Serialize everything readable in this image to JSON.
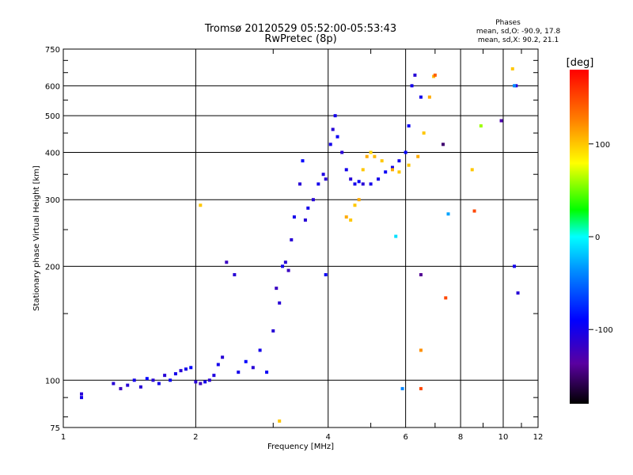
{
  "chart_data": {
    "type": "scatter",
    "title": "Tromsø 20120529 05:52:00-05:53:43",
    "subtitle": "RwPretec (8p)",
    "xlabel": "Frequency [MHz]",
    "ylabel": "Stationary phase Virtual Height [km]",
    "x_scale": "log",
    "y_scale": "log",
    "xlim": [
      1,
      12
    ],
    "ylim": [
      75,
      750
    ],
    "x_ticks": [
      1,
      2,
      4,
      6,
      8,
      10,
      12
    ],
    "x_tick_labels": [
      "1",
      "2",
      "4",
      "6",
      "8",
      "10",
      "12"
    ],
    "y_ticks": [
      75,
      100,
      200,
      300,
      400,
      500,
      600,
      750
    ],
    "y_tick_labels": [
      "75",
      "100",
      "200",
      "300",
      "400",
      "500",
      "600",
      "750"
    ],
    "grid": true,
    "info": {
      "heading": "Phases",
      "line0": "mean, sd,O: -90.9, 17.8",
      "line1": "mean, sd,X:  90.2, 21.1"
    },
    "colorbar": {
      "label": "[deg]",
      "range": [
        -180,
        180
      ],
      "ticks": [
        100,
        0,
        -100
      ],
      "tick_labels": [
        "100",
        "0",
        "-100"
      ]
    },
    "series": [
      {
        "values": [
          [
            1.1,
            92,
            -110
          ],
          [
            1.1,
            90,
            -100
          ],
          [
            1.3,
            98,
            -110
          ],
          [
            1.35,
            95,
            -120
          ],
          [
            1.4,
            97,
            -110
          ],
          [
            1.45,
            100,
            -100
          ],
          [
            1.5,
            96,
            -110
          ],
          [
            1.55,
            101,
            -90
          ],
          [
            1.6,
            100,
            -110
          ],
          [
            1.65,
            98,
            -100
          ],
          [
            1.7,
            103,
            -110
          ],
          [
            1.75,
            100,
            -95
          ],
          [
            1.8,
            104,
            -100
          ],
          [
            1.85,
            106,
            -110
          ],
          [
            1.9,
            107,
            -100
          ],
          [
            1.95,
            108,
            -90
          ],
          [
            2.0,
            99,
            -110
          ],
          [
            2.05,
            98,
            -120
          ],
          [
            2.1,
            99,
            -100
          ],
          [
            2.15,
            100,
            -110
          ],
          [
            2.2,
            103,
            -105
          ],
          [
            2.25,
            110,
            -100
          ],
          [
            2.3,
            115,
            -110
          ],
          [
            2.35,
            205,
            -120
          ],
          [
            2.45,
            190,
            -110
          ],
          [
            2.5,
            105,
            -100
          ],
          [
            2.6,
            112,
            -90
          ],
          [
            2.7,
            108,
            -110
          ],
          [
            2.8,
            120,
            -100
          ],
          [
            2.9,
            105,
            -95
          ],
          [
            3.0,
            135,
            -110
          ],
          [
            3.05,
            175,
            -120
          ],
          [
            3.1,
            160,
            -110
          ],
          [
            3.15,
            200,
            -100
          ],
          [
            3.2,
            205,
            -110
          ],
          [
            3.25,
            195,
            -120
          ],
          [
            3.3,
            235,
            -110
          ],
          [
            3.35,
            270,
            -100
          ],
          [
            3.45,
            330,
            -110
          ],
          [
            3.5,
            380,
            -90
          ],
          [
            3.55,
            265,
            -110
          ],
          [
            3.6,
            285,
            -100
          ],
          [
            3.7,
            300,
            -110
          ],
          [
            3.8,
            330,
            -100
          ],
          [
            3.9,
            350,
            -105
          ],
          [
            3.95,
            340,
            -110
          ],
          [
            3.95,
            190,
            -95
          ],
          [
            4.05,
            420,
            -100
          ],
          [
            4.1,
            460,
            -110
          ],
          [
            4.15,
            500,
            -100
          ],
          [
            4.2,
            440,
            -95
          ],
          [
            4.3,
            400,
            -110
          ],
          [
            4.4,
            360,
            -100
          ],
          [
            4.5,
            340,
            -110
          ],
          [
            4.6,
            330,
            -100
          ],
          [
            4.7,
            335,
            -95
          ],
          [
            4.8,
            330,
            -110
          ],
          [
            5.0,
            330,
            -100
          ],
          [
            5.2,
            340,
            -100
          ],
          [
            5.4,
            355,
            -95
          ],
          [
            5.6,
            365,
            -100
          ],
          [
            5.8,
            380,
            -100
          ],
          [
            6.0,
            400,
            -90
          ],
          [
            6.1,
            470,
            -95
          ],
          [
            6.2,
            600,
            -100
          ],
          [
            6.3,
            640,
            -110
          ],
          [
            6.5,
            560,
            -100
          ],
          [
            4.4,
            270,
            110
          ],
          [
            4.5,
            265,
            100
          ],
          [
            4.6,
            290,
            100
          ],
          [
            4.7,
            300,
            110
          ],
          [
            4.8,
            360,
            100
          ],
          [
            4.9,
            390,
            110
          ],
          [
            5.0,
            400,
            95
          ],
          [
            5.1,
            390,
            105
          ],
          [
            5.3,
            380,
            100
          ],
          [
            5.6,
            360,
            110
          ],
          [
            5.8,
            355,
            100
          ],
          [
            6.1,
            370,
            100
          ],
          [
            6.4,
            390,
            110
          ],
          [
            6.6,
            450,
            100
          ],
          [
            6.8,
            560,
            110
          ],
          [
            6.95,
            635,
            105
          ],
          [
            7.0,
            640,
            140
          ],
          [
            7.3,
            420,
            -150
          ],
          [
            7.5,
            275,
            -30
          ],
          [
            8.5,
            360,
            100
          ],
          [
            8.6,
            280,
            150
          ],
          [
            8.9,
            470,
            60
          ],
          [
            9.9,
            485,
            -130
          ],
          [
            10.6,
            200,
            -100
          ],
          [
            10.7,
            600,
            -110
          ],
          [
            10.8,
            170,
            -110
          ],
          [
            10.5,
            665,
            100
          ],
          [
            10.6,
            600,
            -40
          ],
          [
            5.7,
            240,
            -10
          ],
          [
            5.9,
            95,
            -40
          ],
          [
            6.5,
            95,
            150
          ],
          [
            6.5,
            190,
            -140
          ],
          [
            6.5,
            120,
            120
          ],
          [
            7.4,
            165,
            150
          ],
          [
            3.1,
            78,
            100
          ],
          [
            2.05,
            290,
            100
          ]
        ]
      }
    ]
  }
}
